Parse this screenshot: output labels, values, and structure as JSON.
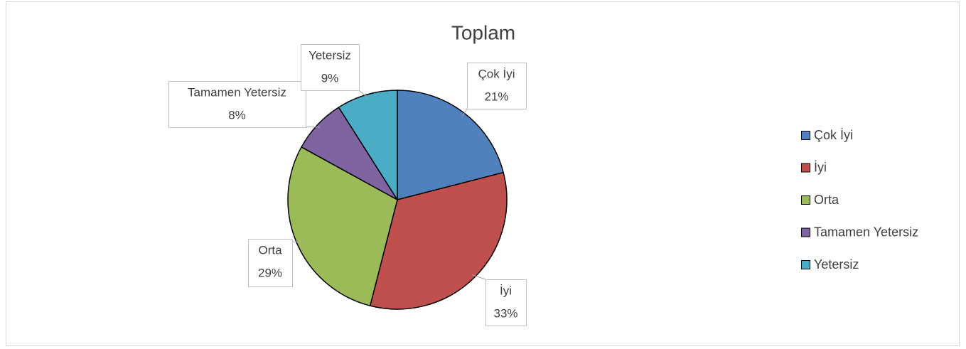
{
  "chart_data": {
    "type": "pie",
    "title": "Toplam",
    "categories": [
      "Çok İyi",
      "İyi",
      "Orta",
      "Tamamen Yetersiz",
      "Yetersiz"
    ],
    "values": [
      21,
      33,
      29,
      8,
      9
    ],
    "value_labels": [
      "21%",
      "33%",
      "29%",
      "8%",
      "9%"
    ],
    "colors": [
      "#4f81bd",
      "#c0504d",
      "#9bbb59",
      "#8064a2",
      "#4bacc6"
    ],
    "legend": "right"
  }
}
